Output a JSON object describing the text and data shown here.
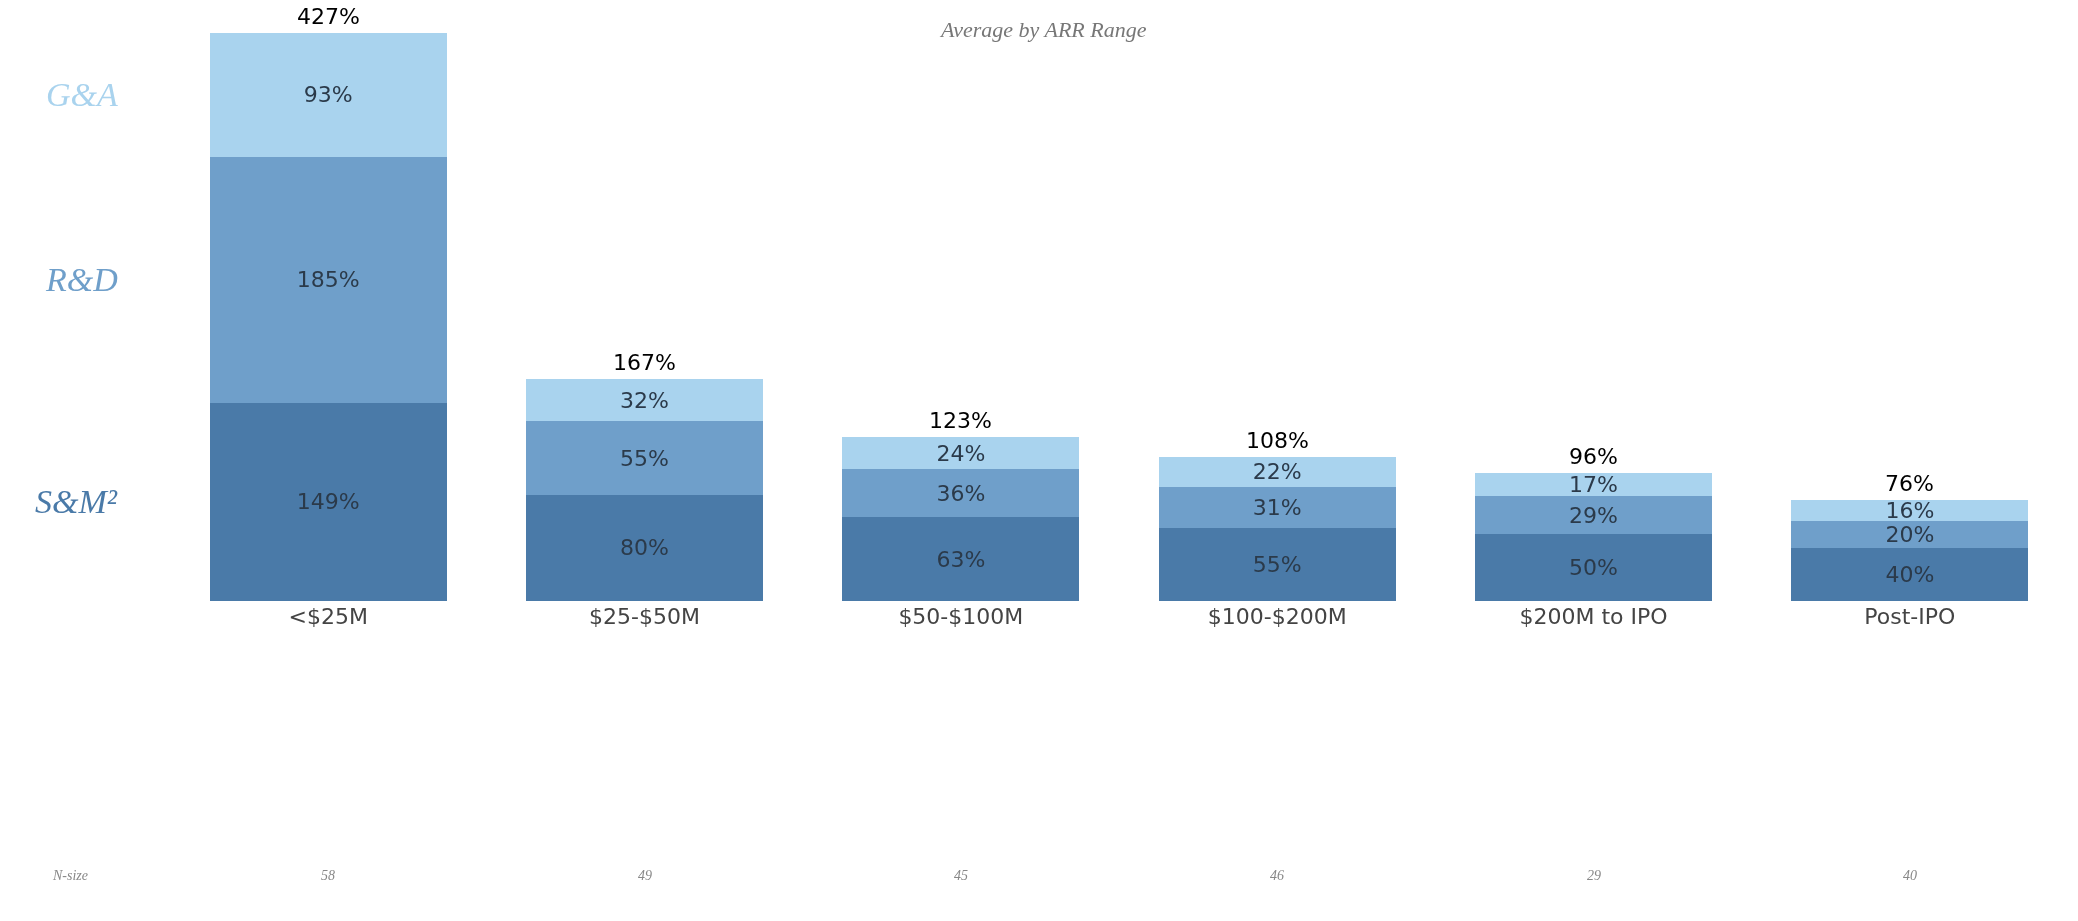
{
  "chart_data": {
    "type": "bar",
    "subtitle": "Average by ARR Range",
    "stacked": true,
    "legend": false,
    "categories": [
      "<$25M",
      "$25-$50M",
      "$50-$100M",
      "$100-$200M",
      "$200M to IPO",
      "Post-IPO"
    ],
    "series": [
      {
        "name": "S&M²",
        "color": "#4a7aa8",
        "values": [
          149,
          80,
          63,
          55,
          50,
          40
        ],
        "value_labels": [
          "149%",
          "80%",
          "63%",
          "55%",
          "50%",
          "40%"
        ]
      },
      {
        "name": "R&D",
        "color": "#6f9fca",
        "values": [
          185,
          55,
          36,
          31,
          29,
          20
        ],
        "value_labels": [
          "185%",
          "55%",
          "36%",
          "31%",
          "29%",
          "20%"
        ]
      },
      {
        "name": "G&A",
        "color": "#a9d3ee",
        "values": [
          93,
          32,
          24,
          22,
          17,
          16
        ],
        "value_labels": [
          "93%",
          "32%",
          "24%",
          "22%",
          "17%",
          "16%"
        ]
      }
    ],
    "totals": [
      "427%",
      "167%",
      "123%",
      "108%",
      "96%",
      "76%"
    ],
    "annotations": [
      "N-size",
      "58",
      "49",
      "45",
      "46",
      "29",
      "40"
    ]
  }
}
